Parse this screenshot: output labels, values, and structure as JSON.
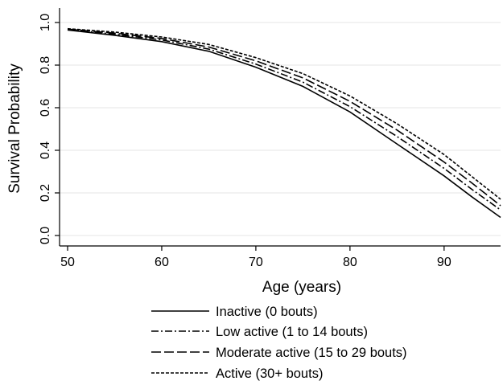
{
  "chart_data": {
    "type": "line",
    "title": "",
    "xlabel": "Age (years)",
    "ylabel": "Survival Probability",
    "xlim": [
      50,
      96
    ],
    "ylim": [
      0,
      1
    ],
    "x_ticks": [
      50,
      60,
      70,
      80,
      90
    ],
    "y_ticks": [
      0.0,
      0.2,
      0.4,
      0.6,
      0.8,
      1.0
    ],
    "y_tick_labels": [
      "0.0",
      "0.2",
      "0.4",
      "0.6",
      "0.8",
      "1.0"
    ],
    "grid": true,
    "legend_position": "bottom",
    "x": [
      50,
      55,
      60,
      65,
      70,
      75,
      80,
      85,
      90,
      93,
      96
    ],
    "series": [
      {
        "name": "Inactive (0 bouts)",
        "dash": "solid",
        "values": [
          0.965,
          0.94,
          0.91,
          0.865,
          0.79,
          0.7,
          0.58,
          0.43,
          0.28,
          0.18,
          0.085
        ]
      },
      {
        "name": "Low active (1 to 14 bouts)",
        "dash": "dashdot",
        "values": [
          0.967,
          0.945,
          0.918,
          0.875,
          0.805,
          0.72,
          0.605,
          0.465,
          0.315,
          0.215,
          0.12
        ]
      },
      {
        "name": "Moderate active (15 to 29 bouts)",
        "dash": "longdash",
        "values": [
          0.969,
          0.95,
          0.925,
          0.885,
          0.82,
          0.74,
          0.63,
          0.495,
          0.345,
          0.245,
          0.14
        ]
      },
      {
        "name": "Active (30+ bouts)",
        "dash": "shortdash",
        "values": [
          0.971,
          0.955,
          0.932,
          0.897,
          0.835,
          0.76,
          0.655,
          0.525,
          0.38,
          0.275,
          0.17
        ]
      }
    ]
  }
}
